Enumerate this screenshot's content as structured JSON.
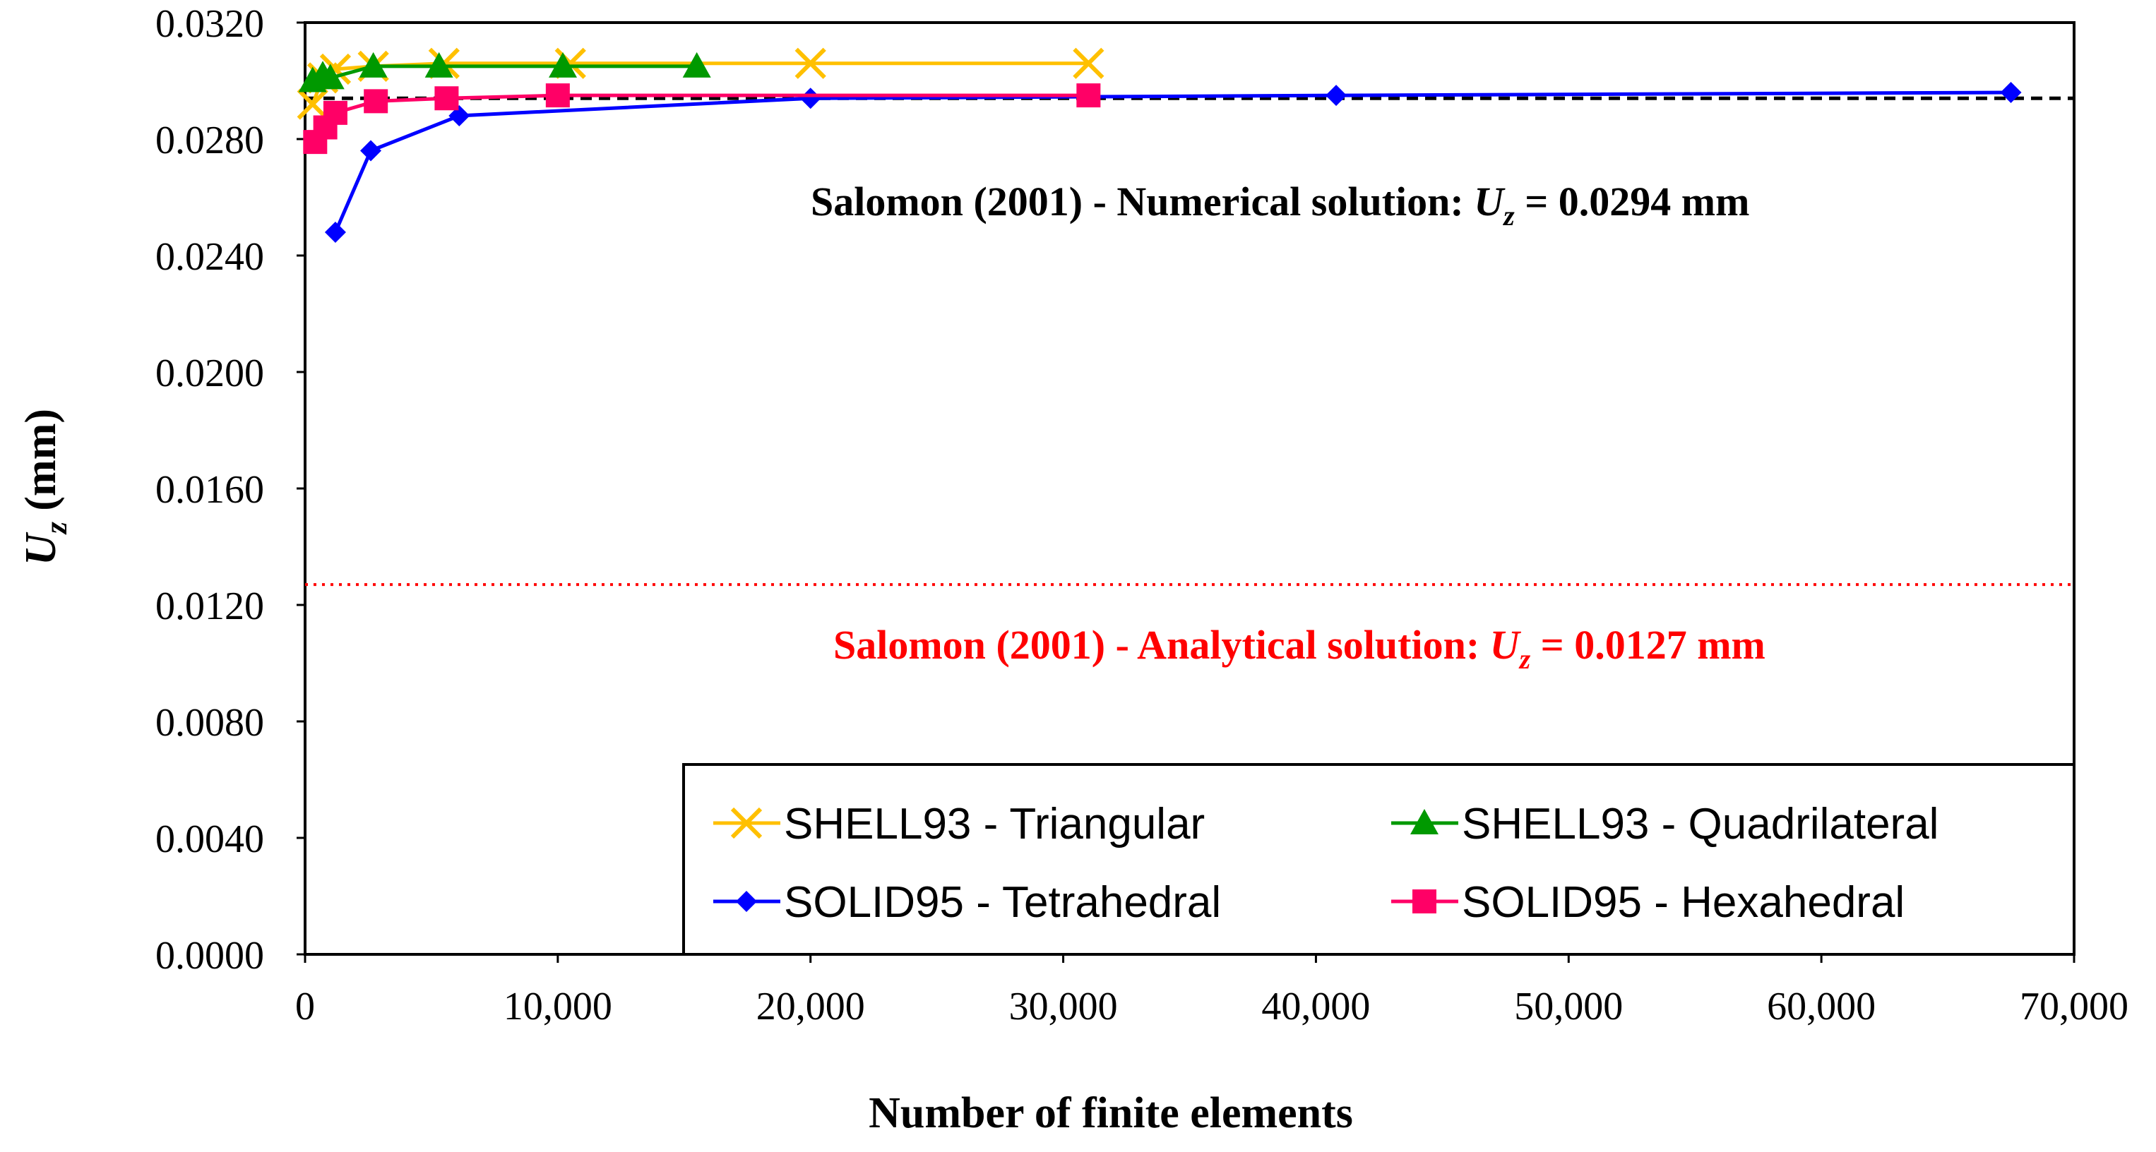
{
  "chart_data": {
    "type": "line",
    "title": "",
    "xlabel": "Number of finite elements",
    "ylabel": "Uz (mm)",
    "ylabel_main": "U",
    "ylabel_sub": "z",
    "ylabel_rest": " (mm)",
    "xlim": [
      0,
      70000
    ],
    "ylim": [
      0.0,
      0.032
    ],
    "x_ticks": [
      0,
      10000,
      20000,
      30000,
      40000,
      50000,
      60000,
      70000
    ],
    "x_tick_labels": [
      "0",
      "10,000",
      "20,000",
      "30,000",
      "40,000",
      "50,000",
      "60,000",
      "70,000"
    ],
    "y_ticks": [
      0.0,
      0.004,
      0.008,
      0.012,
      0.016,
      0.02,
      0.024,
      0.028,
      0.032
    ],
    "y_tick_labels": [
      "0.0000",
      "0.0040",
      "0.0080",
      "0.0120",
      "0.0160",
      "0.0200",
      "0.0240",
      "0.0280",
      "0.0320"
    ],
    "grid": false,
    "legend_position": "bottom-right",
    "series": [
      {
        "name": "SHELL93 - Triangular",
        "color": "#FFC000",
        "marker": "x",
        "x": [
          300,
          700,
          1200,
          2700,
          5500,
          10500,
          20000,
          31000
        ],
        "y": [
          0.0292,
          0.0301,
          0.0304,
          0.0305,
          0.0306,
          0.0306,
          0.0306,
          0.0306
        ]
      },
      {
        "name": "SHELL93 - Quadrilateral",
        "color": "#009900",
        "marker": "triangle",
        "x": [
          300,
          700,
          1000,
          2700,
          5300,
          10200,
          15500
        ],
        "y": [
          0.03,
          0.0302,
          0.0301,
          0.0305,
          0.0305,
          0.0305,
          0.0305
        ]
      },
      {
        "name": "SOLID95 - Tetrahedral",
        "color": "#0000FF",
        "marker": "diamond",
        "x": [
          1200,
          2600,
          6100,
          20000,
          40800,
          67500
        ],
        "y": [
          0.0248,
          0.0276,
          0.0288,
          0.0294,
          0.0295,
          0.0296
        ]
      },
      {
        "name": "SOLID95 - Hexahedral",
        "color": "#FF0066",
        "marker": "square",
        "x": [
          400,
          800,
          1200,
          2800,
          5600,
          10000,
          31000
        ],
        "y": [
          0.0279,
          0.0284,
          0.0289,
          0.0293,
          0.0294,
          0.0295,
          0.0295
        ]
      }
    ],
    "reference_lines": [
      {
        "name": "numerical",
        "value": 0.0294,
        "color": "#000000",
        "style": "dashed",
        "label_prefix": "Salomon (2001) -  Numerical solution: ",
        "label_var": "U",
        "label_sub": "z",
        "label_suffix": " = 0.0294 mm"
      },
      {
        "name": "analytical",
        "value": 0.0127,
        "color": "#FF0000",
        "style": "dotted",
        "label_prefix": "Salomon (2001) - Analytical solution: ",
        "label_var": "U",
        "label_sub": "z",
        "label_suffix": " = 0.0127 mm"
      }
    ]
  }
}
